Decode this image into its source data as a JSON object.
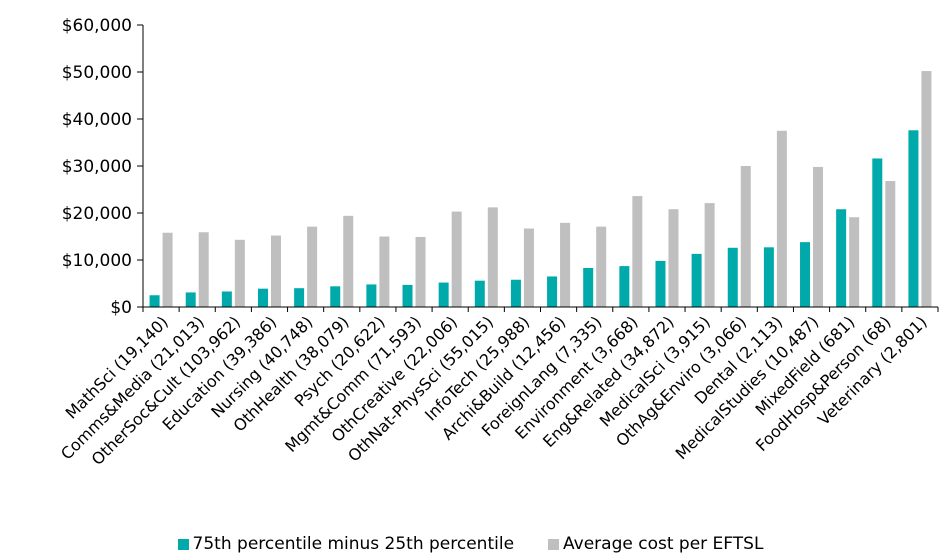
{
  "chart_data": {
    "type": "bar",
    "title": "",
    "xlabel": "",
    "ylabel": "",
    "ylim": [
      0,
      60000
    ],
    "yticks": [
      0,
      10000,
      20000,
      30000,
      40000,
      50000,
      60000
    ],
    "ytick_labels": [
      "$0",
      "$10,000",
      "$20,000",
      "$30,000",
      "$40,000",
      "$50,000",
      "$60,000"
    ],
    "grid": false,
    "legend_position": "bottom",
    "categories": [
      "MathSci (19,140)",
      "Comms&Media (21,013)",
      "OtherSoc&Cult (103,962)",
      "Education (39,386)",
      "Nursing (40,748)",
      "OthHealth (38,079)",
      "Psych (20,622)",
      "Mgmt&Comm (71,593)",
      "OthCreative (22,006)",
      "OthNat-PhysSci (55,015)",
      "InfoTech (25,988)",
      "Archi&Build (12,456)",
      "ForeignLang (7,335)",
      "Environment (3,668)",
      "Eng&Related (34,872)",
      "MedicalSci (3,915)",
      "OthAg&Enviro (3,066)",
      "Dental (2,113)",
      "MedicalStudies (10,487)",
      "MixedField (681)",
      "FoodHosp&Person (68)",
      "Veterinary (2,801)"
    ],
    "series": [
      {
        "name": "75th percentile minus 25th percentile",
        "color": "#00AAAA",
        "values": [
          2500,
          3100,
          3300,
          3900,
          4000,
          4400,
          4800,
          4700,
          5200,
          5600,
          5800,
          6500,
          8300,
          8700,
          9800,
          11300,
          12600,
          12700,
          13800,
          20800,
          31600,
          37600
        ]
      },
      {
        "name": "Average cost per EFTSL",
        "color": "#BFBFBF",
        "values": [
          15800,
          15900,
          14300,
          15200,
          17100,
          19400,
          15000,
          14900,
          20300,
          21200,
          16700,
          17900,
          17100,
          23600,
          20800,
          22100,
          30000,
          37500,
          29800,
          19100,
          26800,
          50200
        ]
      }
    ]
  }
}
